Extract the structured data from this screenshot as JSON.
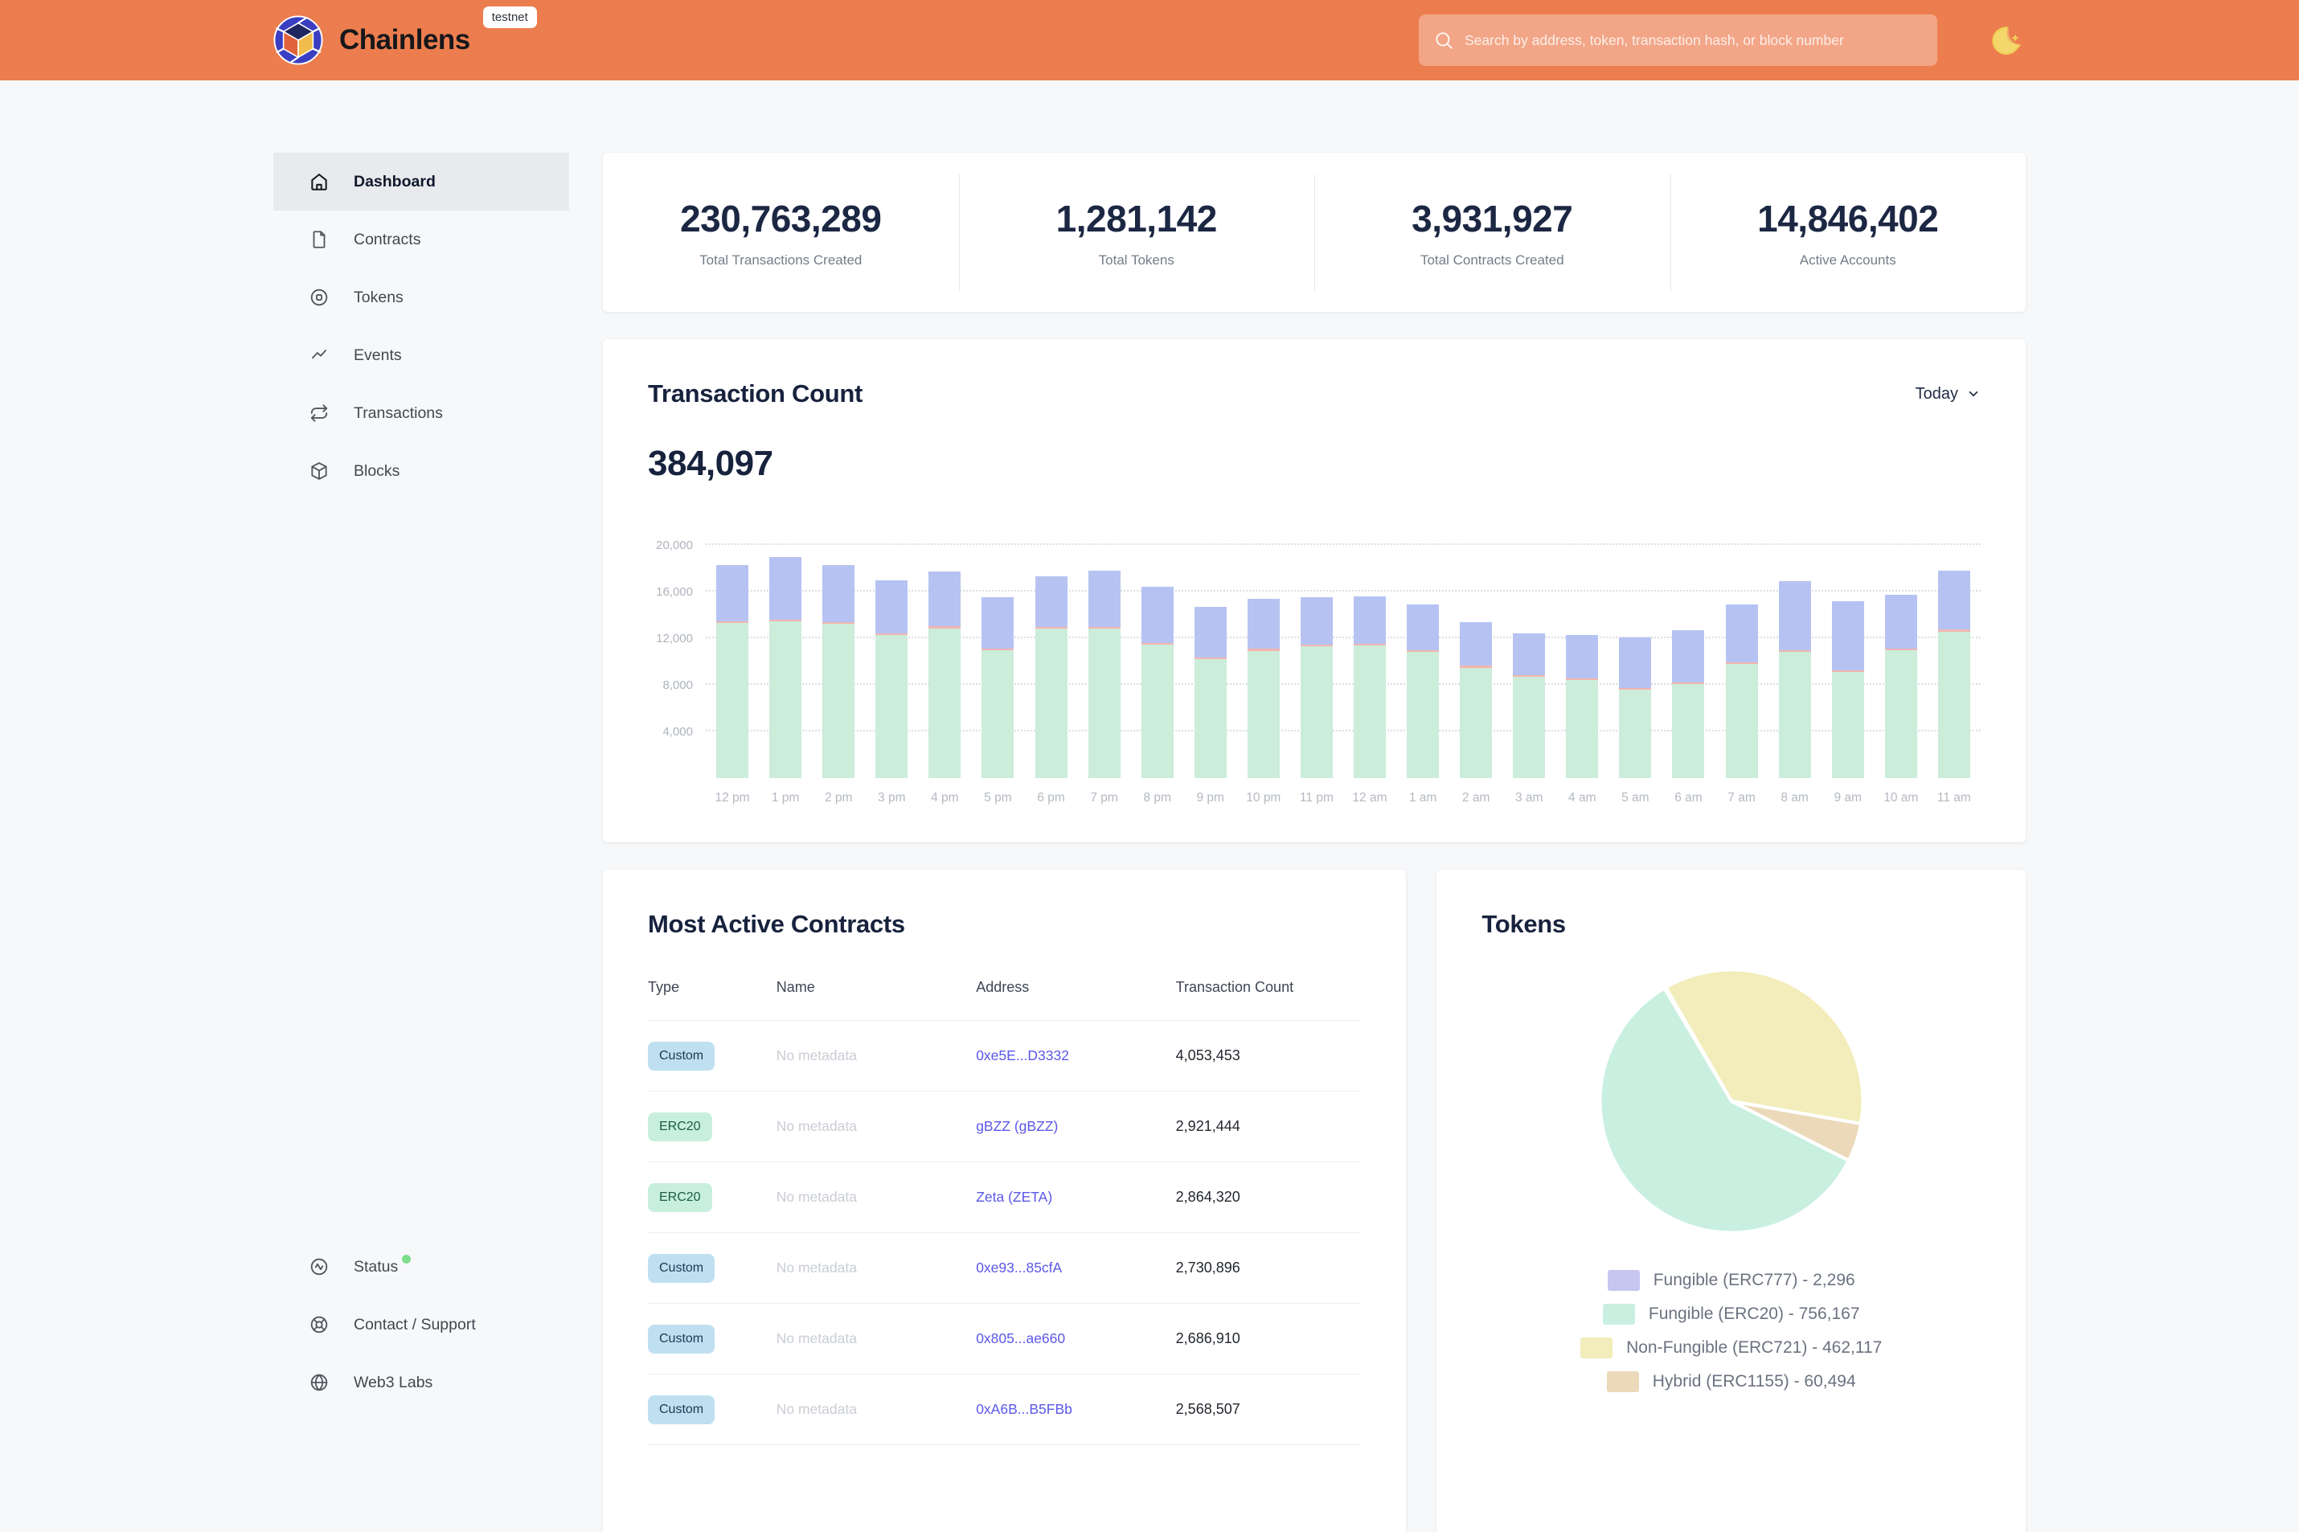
{
  "colors": {
    "header_background": "#EC7D4E",
    "accent_link": "#5B58E8",
    "status_dot": "#7CDE8B",
    "active_nav_background": "#E9EAED"
  },
  "header": {
    "brand": "Chainlens",
    "badge": "testnet",
    "search": {
      "placeholder": "Search by address, token, transaction hash, or block number"
    }
  },
  "sidebar": {
    "items": [
      {
        "label": "Dashboard",
        "icon": "home",
        "active": true
      },
      {
        "label": "Contracts",
        "icon": "document",
        "active": false
      },
      {
        "label": "Tokens",
        "icon": "token",
        "active": false
      },
      {
        "label": "Events",
        "icon": "activity",
        "active": false
      },
      {
        "label": "Transactions",
        "icon": "repeat",
        "active": false
      },
      {
        "label": "Blocks",
        "icon": "cube",
        "active": false
      }
    ],
    "footer_items": [
      {
        "label": "Status",
        "icon": "status-circle",
        "has_status_dot": true
      },
      {
        "label": "Contact / Support",
        "icon": "lifebuoy",
        "has_status_dot": false
      },
      {
        "label": "Web3 Labs",
        "icon": "globe",
        "has_status_dot": false
      }
    ]
  },
  "stats": [
    {
      "value": "230,763,289",
      "label": "Total Transactions Created"
    },
    {
      "value": "1,281,142",
      "label": "Total Tokens"
    },
    {
      "value": "3,931,927",
      "label": "Total Contracts Created"
    },
    {
      "value": "14,846,402",
      "label": "Active Accounts"
    }
  ],
  "tx_card": {
    "title": "Transaction Count",
    "range": "Today",
    "total": "384,097"
  },
  "contracts_card": {
    "title": "Most Active Contracts",
    "columns": [
      "Type",
      "Name",
      "Address",
      "Transaction Count"
    ],
    "rows": [
      {
        "type": "Custom",
        "name": "No metadata",
        "address": "0xe5E...D3332",
        "count": "4,053,453"
      },
      {
        "type": "ERC20",
        "name": "No metadata",
        "address": "gBZZ (gBZZ)",
        "count": "2,921,444"
      },
      {
        "type": "ERC20",
        "name": "No metadata",
        "address": "Zeta (ZETA)",
        "count": "2,864,320"
      },
      {
        "type": "Custom",
        "name": "No metadata",
        "address": "0xe93...85cfA",
        "count": "2,730,896"
      },
      {
        "type": "Custom",
        "name": "No metadata",
        "address": "0x805...ae660",
        "count": "2,686,910"
      },
      {
        "type": "Custom",
        "name": "No metadata",
        "address": "0xA6B...B5FBb",
        "count": "2,568,507"
      }
    ],
    "badge_colors": {
      "Custom": {
        "bg": "#BFE0F1",
        "text": "#1B3A52"
      },
      "ERC20": {
        "bg": "#C8EFDD",
        "text": "#1A5B41"
      }
    }
  },
  "tokens_card": {
    "title": "Tokens"
  },
  "chart_data": [
    {
      "type": "bar",
      "title": "Transaction Count",
      "subtitle_total": 384097,
      "stacked": true,
      "categories": [
        "12 pm",
        "1 pm",
        "2 pm",
        "3 pm",
        "4 pm",
        "5 pm",
        "6 pm",
        "7 pm",
        "8 pm",
        "9 pm",
        "10 pm",
        "11 pm",
        "12 am",
        "1 am",
        "2 am",
        "3 am",
        "4 am",
        "5 am",
        "6 am",
        "7 am",
        "8 am",
        "9 am",
        "10 am",
        "11 am"
      ],
      "series": [
        {
          "name": "green",
          "color": "#CBEDDA",
          "values": [
            13300,
            13450,
            13250,
            12300,
            12800,
            10950,
            12800,
            12800,
            11450,
            10200,
            10900,
            11300,
            11350,
            10800,
            9450,
            8700,
            8400,
            7600,
            8100,
            9800,
            10800,
            9100,
            10950,
            12550
          ]
        },
        {
          "name": "pink",
          "color": "#F2B5AF",
          "values": [
            150,
            150,
            150,
            150,
            200,
            150,
            150,
            150,
            150,
            150,
            200,
            150,
            150,
            150,
            200,
            150,
            150,
            150,
            150,
            150,
            150,
            150,
            150,
            200
          ]
        },
        {
          "name": "blue",
          "color": "#B6C3F2",
          "values": [
            4850,
            5400,
            4900,
            4550,
            4700,
            4400,
            4350,
            4850,
            4800,
            4350,
            4300,
            4050,
            4050,
            3950,
            3700,
            3600,
            3750,
            4350,
            4450,
            4950,
            5900,
            5950,
            4600,
            5050
          ]
        }
      ],
      "xlabel": "",
      "ylabel": "",
      "ylim": [
        0,
        20000
      ],
      "yticks": [
        4000,
        8000,
        12000,
        16000,
        20000
      ],
      "grid": "horizontal-dotted",
      "legend_position": "none"
    },
    {
      "type": "pie",
      "title": "Tokens",
      "slices": [
        {
          "label": "Fungible (ERC777)",
          "value": 2296,
          "color": "#C7C6F0"
        },
        {
          "label": "Fungible (ERC20)",
          "value": 756167,
          "color": "#C9EFE0"
        },
        {
          "label": "Non-Fungible (ERC721)",
          "value": 462117,
          "color": "#F2EDBA"
        },
        {
          "label": "Hybrid (ERC1155)",
          "value": 60494,
          "color": "#EBD9BA"
        }
      ],
      "legend_position": "bottom",
      "start_deg": 330,
      "draw_order": [
        2,
        3,
        1,
        0
      ]
    }
  ]
}
